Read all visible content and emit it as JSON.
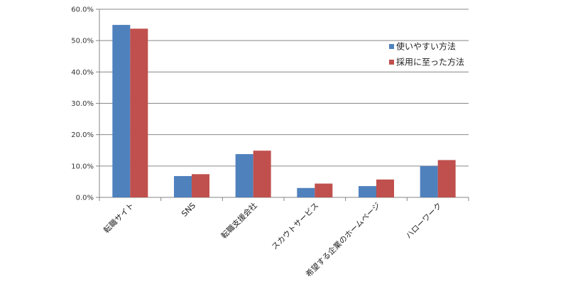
{
  "chart_data": {
    "type": "bar",
    "categories": [
      "転職サイト",
      "SNS",
      "転職支援会社",
      "スカウトサービス",
      "希望する企業のホームページ",
      "ハローワーク"
    ],
    "series": [
      {
        "name": "使いやすい方法",
        "color": "#4f81bd",
        "values": [
          55.0,
          6.8,
          13.8,
          3.0,
          3.6,
          10.0
        ]
      },
      {
        "name": "採用に至った方法",
        "color": "#c0504d",
        "values": [
          53.8,
          7.4,
          14.9,
          4.4,
          5.7,
          11.9
        ]
      }
    ],
    "y_ticks": [
      "0.0%",
      "10.0%",
      "20.0%",
      "30.0%",
      "40.0%",
      "50.0%",
      "60.0%"
    ],
    "ylim": [
      0,
      60
    ],
    "grid": true,
    "legend": "top-right",
    "title": "",
    "xlabel": "",
    "ylabel": ""
  }
}
